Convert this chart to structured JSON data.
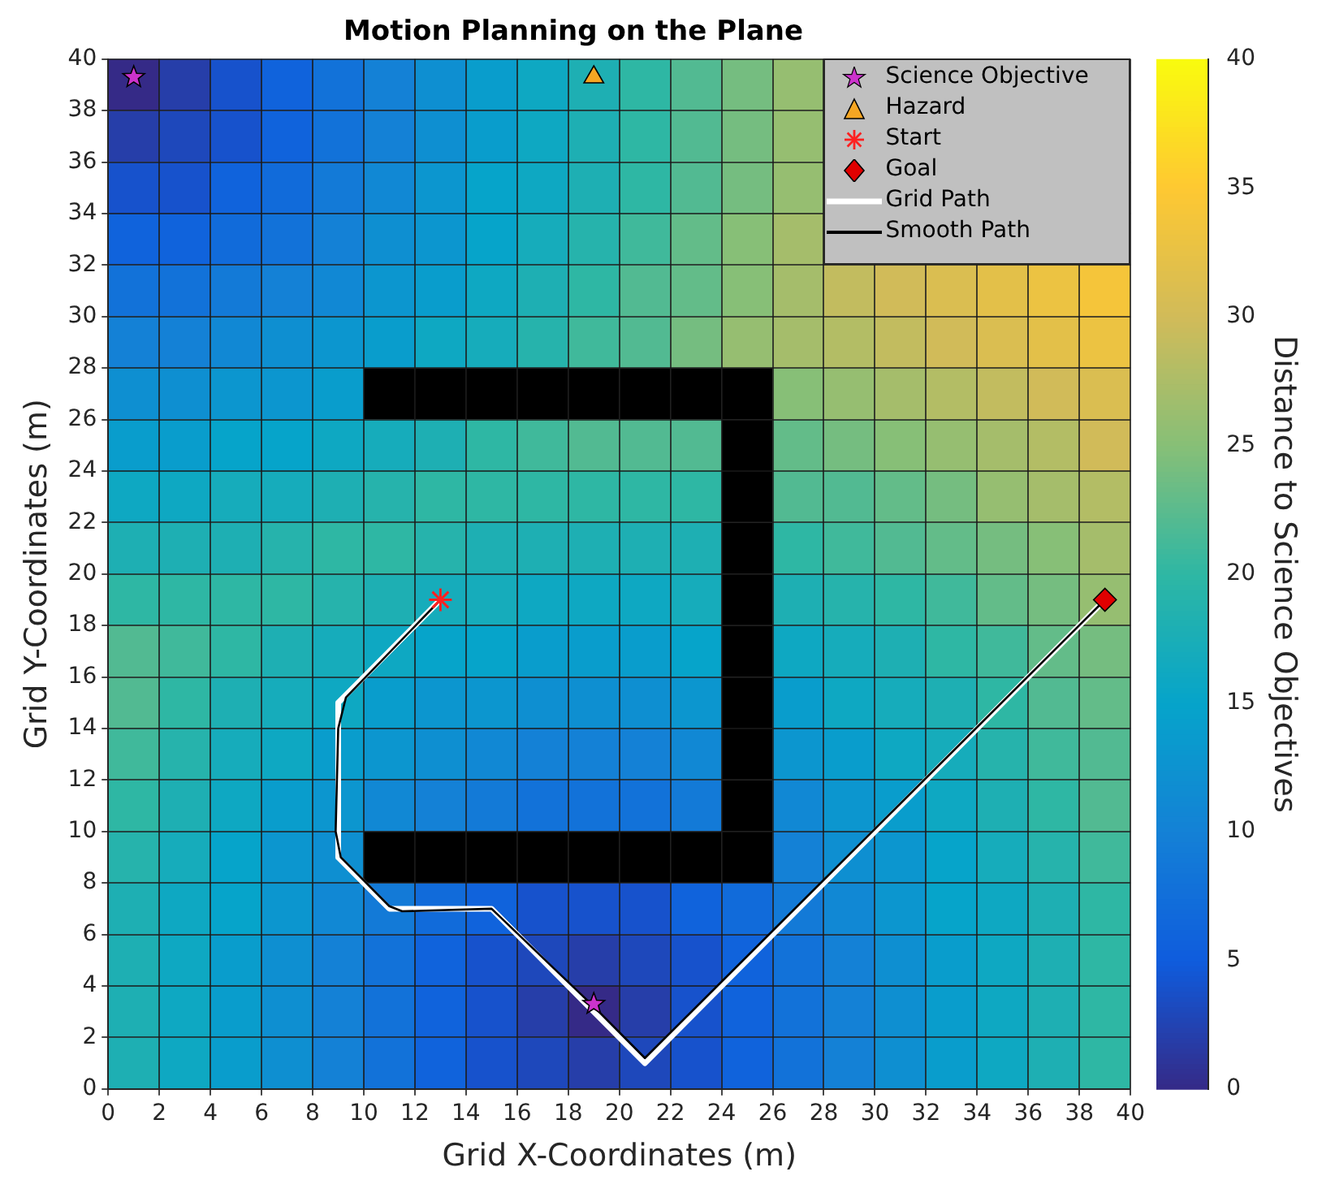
{
  "chart_data": {
    "type": "heatmap",
    "title": "Motion Planning on the Plane",
    "xlabel": "Grid X-Coordinates (m)",
    "ylabel": "Grid Y-Coordinates (m)",
    "clabel": "Distance to Science Objectives",
    "xlim": [
      0,
      40
    ],
    "ylim": [
      0,
      40
    ],
    "xticks": [
      0,
      2,
      4,
      6,
      8,
      10,
      12,
      14,
      16,
      18,
      20,
      22,
      24,
      26,
      28,
      30,
      32,
      34,
      36,
      38,
      40
    ],
    "yticks": [
      0,
      2,
      4,
      6,
      8,
      10,
      12,
      14,
      16,
      18,
      20,
      22,
      24,
      26,
      28,
      30,
      32,
      34,
      36,
      38,
      40
    ],
    "clim": [
      0,
      40
    ],
    "cticks": [
      0,
      5,
      10,
      15,
      20,
      25,
      30,
      35,
      40
    ],
    "grid": true,
    "legend": "top right",
    "cells": [
      [
        0,
        2,
        4,
        6,
        8,
        10,
        12,
        14,
        16,
        18,
        20,
        22,
        24,
        26,
        null,
        null,
        null,
        null,
        null,
        null
      ],
      [
        2,
        3,
        4,
        6,
        8,
        10,
        12,
        14,
        16,
        18,
        20,
        22,
        24,
        26,
        null,
        null,
        null,
        null,
        null,
        null
      ],
      [
        4,
        4,
        6,
        7,
        9,
        11,
        13,
        15,
        16,
        18,
        20,
        22,
        24,
        26,
        null,
        null,
        null,
        null,
        null,
        null
      ],
      [
        6,
        6,
        7,
        8,
        10,
        12,
        13,
        15,
        17,
        19,
        21,
        23,
        25,
        27,
        null,
        null,
        null,
        null,
        null,
        null
      ],
      [
        8,
        8,
        9,
        10,
        11,
        13,
        14,
        16,
        18,
        20,
        22,
        23,
        25,
        27,
        29,
        30,
        31,
        32,
        33,
        34
      ],
      [
        10,
        10,
        11,
        12,
        13,
        14,
        16,
        17,
        19,
        21,
        22,
        24,
        26,
        27,
        28,
        29,
        30,
        31,
        32,
        33
      ],
      [
        12,
        12,
        13,
        13,
        14,
        null,
        null,
        null,
        null,
        null,
        null,
        null,
        null,
        25,
        26,
        27,
        28,
        29,
        30,
        31
      ],
      [
        14,
        14,
        15,
        15,
        16,
        17,
        18,
        20,
        21,
        22,
        22,
        22,
        null,
        23,
        24,
        25,
        26,
        27,
        28,
        30
      ],
      [
        16,
        16,
        17,
        17,
        18,
        19,
        20,
        20,
        20,
        20,
        20,
        20,
        null,
        22,
        22,
        23,
        24,
        26,
        27,
        28
      ],
      [
        18,
        18,
        18,
        19,
        20,
        20,
        19,
        18,
        18,
        18,
        18,
        18,
        null,
        20,
        21,
        22,
        23,
        24,
        25,
        27
      ],
      [
        20,
        20,
        20,
        20,
        19,
        18,
        17,
        17,
        16,
        16,
        16,
        17,
        null,
        18,
        19,
        20,
        21,
        23,
        24,
        26
      ],
      [
        22,
        21,
        20,
        18,
        17,
        16,
        15,
        15,
        14,
        14,
        14,
        15,
        null,
        16,
        17,
        18,
        20,
        21,
        23,
        24
      ],
      [
        22,
        20,
        18,
        17,
        16,
        14,
        13,
        13,
        12,
        12,
        12,
        13,
        null,
        14,
        16,
        17,
        18,
        20,
        22,
        23
      ],
      [
        21,
        19,
        17,
        16,
        14,
        13,
        12,
        11,
        10,
        10,
        10,
        11,
        null,
        13,
        14,
        16,
        17,
        19,
        21,
        22
      ],
      [
        20,
        18,
        16,
        14,
        13,
        11,
        10,
        9,
        8,
        8,
        8,
        9,
        null,
        11,
        13,
        14,
        16,
        18,
        20,
        22
      ],
      [
        19,
        17,
        15,
        13,
        12,
        null,
        null,
        null,
        null,
        null,
        null,
        null,
        null,
        10,
        12,
        13,
        15,
        17,
        19,
        21
      ],
      [
        18,
        16,
        15,
        13,
        11,
        9,
        7,
        6,
        4,
        4,
        4,
        6,
        7,
        9,
        11,
        13,
        15,
        16,
        18,
        20
      ],
      [
        18,
        16,
        14,
        12,
        10,
        8,
        6,
        4,
        3,
        2,
        3,
        4,
        6,
        8,
        10,
        12,
        14,
        16,
        18,
        20
      ],
      [
        18,
        16,
        14,
        12,
        10,
        8,
        6,
        4,
        2,
        0,
        2,
        4,
        6,
        8,
        10,
        12,
        14,
        16,
        18,
        20
      ],
      [
        18,
        16,
        14,
        12,
        10,
        8,
        6,
        4,
        3,
        2,
        3,
        4,
        6,
        8,
        10,
        12,
        14,
        16,
        18,
        20
      ]
    ],
    "series": [
      {
        "name": "Science Objective",
        "type": "scatter",
        "marker": "star",
        "color": "#cc33cc",
        "x": [
          1,
          19
        ],
        "values": [
          39.3,
          3.3
        ]
      },
      {
        "name": "Hazard",
        "type": "scatter",
        "marker": "triangle",
        "color": "#f5a623",
        "x": [
          19
        ],
        "values": [
          39.3
        ]
      },
      {
        "name": "Start",
        "type": "scatter",
        "marker": "cross",
        "color": "#ff2020",
        "x": [
          13
        ],
        "values": [
          19
        ]
      },
      {
        "name": "Goal",
        "type": "scatter",
        "marker": "diamond",
        "color": "#e00000",
        "x": [
          39
        ],
        "values": [
          19
        ]
      },
      {
        "name": "Grid Path",
        "type": "line",
        "color": "#ffffff",
        "x": [
          13,
          12,
          11,
          10,
          9,
          9,
          10,
          11,
          15,
          19,
          21,
          39
        ],
        "values": [
          19,
          18,
          17,
          16,
          15,
          9,
          8,
          7,
          7,
          3,
          1,
          19
        ]
      },
      {
        "name": "Smooth Path",
        "type": "line",
        "color": "#000000",
        "x": [
          13,
          9.3,
          9,
          8.9,
          9.1,
          10,
          11,
          11.5,
          15,
          19,
          21,
          39
        ],
        "values": [
          19,
          15.2,
          14,
          10,
          9,
          8.1,
          7.1,
          6.9,
          7,
          3.2,
          1.2,
          19
        ]
      }
    ]
  }
}
